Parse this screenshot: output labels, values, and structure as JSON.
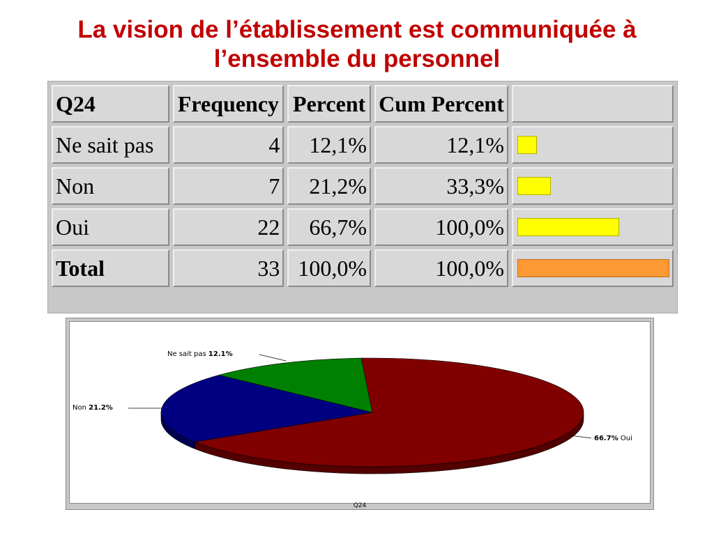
{
  "title": {
    "line1": "La vision de l’établissement est communiquée à",
    "line2": "l’ensemble du personnel"
  },
  "table": {
    "headers": [
      "Q24",
      "Frequency",
      "Percent",
      "Cum Percent",
      ""
    ],
    "rows": [
      {
        "label": "Ne sait pas",
        "frequency": "4",
        "percent": "12,1%",
        "cum": "12,1%",
        "bar_fraction": 0.121,
        "bar_color": "#ffff00"
      },
      {
        "label": "Non",
        "frequency": "7",
        "percent": "21,2%",
        "cum": "33,3%",
        "bar_fraction": 0.212,
        "bar_color": "#ffff00"
      },
      {
        "label": "Oui",
        "frequency": "22",
        "percent": "66,7%",
        "cum": "100,0%",
        "bar_fraction": 0.667,
        "bar_color": "#ffff00"
      },
      {
        "label": "Total",
        "frequency": "33",
        "percent": "100,0%",
        "cum": "100,0%",
        "bar_fraction": 1.0,
        "bar_color": "#ff9933"
      }
    ]
  },
  "chart_data": {
    "type": "pie",
    "categories": [
      "Oui",
      "Non",
      "Ne sait pas"
    ],
    "values": [
      66.7,
      21.2,
      12.1
    ],
    "colors": [
      "#800000",
      "#000080",
      "#008000"
    ],
    "labels": [
      {
        "name": "Ne sait pas",
        "value": "12.1%"
      },
      {
        "name": "Non",
        "value": "21.2%"
      },
      {
        "name": "Oui",
        "value": "66.7%"
      }
    ],
    "xlabel": "Q24",
    "three_d": true
  }
}
